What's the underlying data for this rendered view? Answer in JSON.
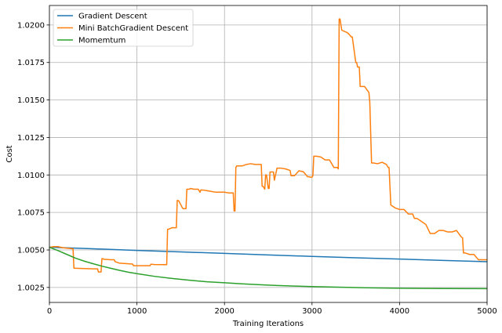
{
  "chart_data": {
    "type": "line",
    "title": "",
    "xlabel": "Training Iterations",
    "ylabel": "Cost",
    "xlim": [
      0,
      5000
    ],
    "ylim": [
      1.0015,
      1.0213
    ],
    "xticks": [
      0,
      1000,
      2000,
      3000,
      4000,
      5000
    ],
    "xtick_labels": [
      "0",
      "1000",
      "2000",
      "3000",
      "4000",
      "5000"
    ],
    "yticks": [
      1.0025,
      1.005,
      1.0075,
      1.01,
      1.0125,
      1.015,
      1.0175,
      1.02
    ],
    "ytick_labels": [
      "1.0025",
      "1.0050",
      "1.0075",
      "1.0100",
      "1.0125",
      "1.0150",
      "1.0175",
      "1.0200"
    ],
    "grid": true,
    "legend_position": "top-left",
    "series": [
      {
        "name": "Gradient Descent",
        "color": "#1f77b4",
        "x": [
          0,
          500,
          1000,
          1500,
          2000,
          2500,
          3000,
          3500,
          4000,
          4500,
          5000
        ],
        "y": [
          1.00518,
          1.00508,
          1.00497,
          1.00487,
          1.00477,
          1.00467,
          1.00457,
          1.00448,
          1.00439,
          1.0043,
          1.00422
        ]
      },
      {
        "name": "Mini BatchGradient Descent",
        "color": "#ff7f0e",
        "x": [
          0,
          50,
          100,
          150,
          200,
          270,
          280,
          300,
          400,
          500,
          550,
          560,
          580,
          590,
          600,
          610,
          620,
          700,
          740,
          750,
          800,
          900,
          950,
          960,
          1000,
          1100,
          1150,
          1160,
          1200,
          1300,
          1340,
          1350,
          1360,
          1400,
          1450,
          1460,
          1470,
          1480,
          1520,
          1530,
          1560,
          1570,
          1600,
          1610,
          1650,
          1700,
          1720,
          1730,
          1750,
          1800,
          1900,
          1950,
          2000,
          2050,
          2100,
          2110,
          2120,
          2130,
          2140,
          2200,
          2250,
          2300,
          2350,
          2400,
          2420,
          2430,
          2440,
          2460,
          2470,
          2480,
          2500,
          2510,
          2520,
          2560,
          2570,
          2600,
          2650,
          2700,
          2750,
          2760,
          2800,
          2850,
          2900,
          2950,
          2970,
          2980,
          3000,
          3010,
          3020,
          3050,
          3100,
          3150,
          3200,
          3250,
          3290,
          3300,
          3310,
          3320,
          3340,
          3400,
          3420,
          3450,
          3460,
          3500,
          3510,
          3520,
          3540,
          3550,
          3600,
          3650,
          3660,
          3680,
          3700,
          3750,
          3800,
          3850,
          3870,
          3880,
          3900,
          3950,
          4000,
          4050,
          4100,
          4150,
          4170,
          4200,
          4250,
          4300,
          4350,
          4400,
          4450,
          4500,
          4550,
          4600,
          4650,
          4700,
          4720,
          4730,
          4750,
          4800,
          4850,
          4900,
          4950,
          5000
        ],
        "y": [
          1.00518,
          1.00522,
          1.00522,
          1.00515,
          1.00512,
          1.00508,
          1.00378,
          1.00378,
          1.00376,
          1.00374,
          1.00374,
          1.00353,
          1.00353,
          1.00353,
          1.00442,
          1.00442,
          1.00438,
          1.00435,
          1.00435,
          1.00422,
          1.00412,
          1.00408,
          1.00406,
          1.00395,
          1.00395,
          1.00395,
          1.00395,
          1.00405,
          1.00403,
          1.00402,
          1.00402,
          1.00638,
          1.00638,
          1.00648,
          1.00648,
          1.0083,
          1.0083,
          1.00825,
          1.0078,
          1.00775,
          1.00775,
          1.00905,
          1.00905,
          1.0091,
          1.00905,
          1.00905,
          1.00885,
          1.009,
          1.009,
          1.00895,
          1.00885,
          1.00885,
          1.00885,
          1.0088,
          1.0088,
          1.0076,
          1.0076,
          1.0105,
          1.0106,
          1.0106,
          1.0107,
          1.01075,
          1.0107,
          1.0107,
          1.0107,
          1.00925,
          1.00925,
          1.00905,
          1.01,
          1.01,
          1.0091,
          1.0091,
          1.0102,
          1.0102,
          1.00965,
          1.01045,
          1.01045,
          1.0104,
          1.0103,
          1.00995,
          1.00995,
          1.01028,
          1.01022,
          1.00988,
          1.00988,
          1.00985,
          1.00985,
          1.00995,
          1.01125,
          1.01125,
          1.0112,
          1.011,
          1.011,
          1.0105,
          1.0105,
          1.0104,
          1.0204,
          1.0204,
          1.01965,
          1.0195,
          1.0194,
          1.0192,
          1.0192,
          1.0175,
          1.0175,
          1.0172,
          1.0172,
          1.0159,
          1.0159,
          1.0155,
          1.01485,
          1.0108,
          1.0108,
          1.01075,
          1.01085,
          1.0107,
          1.0105,
          1.0105,
          1.008,
          1.0078,
          1.0077,
          1.0077,
          1.0074,
          1.0074,
          1.0071,
          1.0071,
          1.0069,
          1.0067,
          1.0061,
          1.0061,
          1.0063,
          1.0063,
          1.0062,
          1.0062,
          1.0063,
          1.0059,
          1.0058,
          1.0048,
          1.0048,
          1.0047,
          1.0047,
          1.00435,
          1.00435,
          1.00435
        ]
      },
      {
        "name": " Momemtum",
        "color": "#2ca02c",
        "x": [
          0,
          100,
          200,
          300,
          400,
          500,
          600,
          700,
          800,
          900,
          1000,
          1200,
          1400,
          1600,
          1800,
          2000,
          2200,
          2400,
          2600,
          2800,
          3000,
          3300,
          3600,
          4000,
          4500,
          5000
        ],
        "y": [
          1.00518,
          1.00495,
          1.0047,
          1.00445,
          1.00425,
          1.00408,
          1.00392,
          1.00378,
          1.00364,
          1.00352,
          1.00342,
          1.00324,
          1.0031,
          1.00298,
          1.00288,
          1.00281,
          1.00274,
          1.00268,
          1.00263,
          1.00259,
          1.00256,
          1.00252,
          1.00248,
          1.00245,
          1.00243,
          1.00242
        ]
      }
    ]
  }
}
